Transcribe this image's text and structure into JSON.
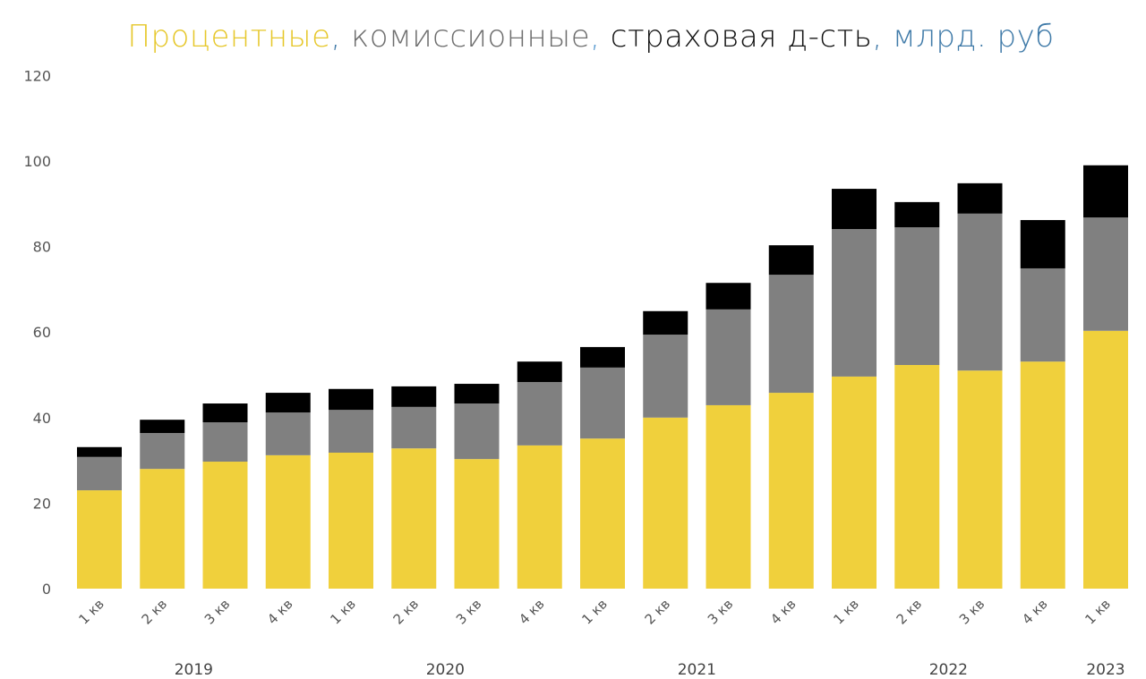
{
  "chart_data": {
    "type": "bar",
    "stacked": true,
    "title_parts": [
      {
        "text": "Процентные",
        "color": "#e6c72a"
      },
      {
        "text": ", ",
        "color": "#3f7aa8"
      },
      {
        "text": "комиссионные",
        "color": "#6e6e6e"
      },
      {
        "text": ", ",
        "color": "#5a9bd0"
      },
      {
        "text": "страховая д-сть",
        "color": "#111111"
      },
      {
        "text": ", млрд. руб",
        "color": "#3f7aa8"
      }
    ],
    "title": "Процентные, комиссионные, страховая д-сть, млрд. руб",
    "categories": [
      "1 кв",
      "2 кв",
      "3 кв",
      "4 кв",
      "1 кв",
      "2 кв",
      "3 кв",
      "4 кв",
      "1 кв",
      "2 кв",
      "3 кв",
      "4 кв",
      "1 кв",
      "2 кв",
      "3 кв",
      "4 кв",
      "1 кв"
    ],
    "years": [
      {
        "label": "2019",
        "from": 0,
        "to": 3
      },
      {
        "label": "2020",
        "from": 4,
        "to": 7
      },
      {
        "label": "2021",
        "from": 8,
        "to": 11
      },
      {
        "label": "2022",
        "from": 12,
        "to": 15
      },
      {
        "label": "2023",
        "from": 16,
        "to": 16
      }
    ],
    "series": [
      {
        "name": "Процентные",
        "color": "#f0d03c",
        "values": [
          23.0,
          28.0,
          29.7,
          31.2,
          31.8,
          32.8,
          30.3,
          33.5,
          35.1,
          40.0,
          42.9,
          45.8,
          49.6,
          52.3,
          51.0,
          53.1,
          60.3
        ]
      },
      {
        "name": "Комиссионные",
        "color": "#808080",
        "values": [
          7.8,
          8.4,
          9.2,
          10.0,
          10.0,
          9.7,
          13.0,
          14.8,
          16.6,
          19.4,
          22.4,
          27.6,
          34.5,
          32.2,
          36.7,
          21.8,
          26.5
        ]
      },
      {
        "name": "Страховая д-сть",
        "color": "#000000",
        "values": [
          2.3,
          3.1,
          4.4,
          4.6,
          4.9,
          4.8,
          4.6,
          4.8,
          4.8,
          5.5,
          6.2,
          6.9,
          9.4,
          5.9,
          7.1,
          11.3,
          12.2
        ]
      }
    ],
    "yticks": [
      "0",
      "20",
      "40",
      "60",
      "80",
      "100",
      "120"
    ],
    "ylim": [
      0,
      120
    ],
    "grid": false,
    "xlabel": "",
    "ylabel": ""
  }
}
